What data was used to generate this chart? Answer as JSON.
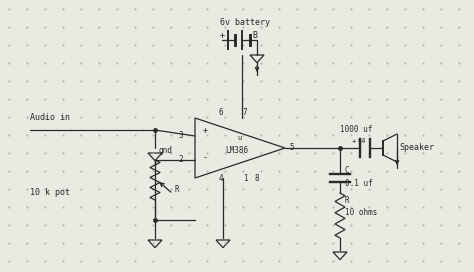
{
  "bg_color": "#eaeae2",
  "line_color": "#2a2a2a",
  "dot_color": "#aaaaaa",
  "fig_width": 4.74,
  "fig_height": 2.72,
  "dpi": 100,
  "labels": {
    "audio_in": "Audio in",
    "gnd": "gnd",
    "pot": "10 k pot",
    "battery": "6v battery",
    "lm386": "LM386",
    "cap1_label": "1000 uf",
    "cap2_label": "0.1 uf",
    "resistor_label": "10 ohms",
    "speaker": "Speaker",
    "R_label": "R",
    "C_label": "C",
    "C4_label": "C4",
    "plus_bat": "+",
    "minus_bat": "B",
    "pin3": "3",
    "pin2": "2",
    "pin6": "6",
    "pin7": "7",
    "pin5": "5",
    "pin4": "4",
    "pin1": "1",
    "pin8": "8",
    "plus_sign": "+",
    "minus_sign": "-",
    "u_sign": "u"
  }
}
